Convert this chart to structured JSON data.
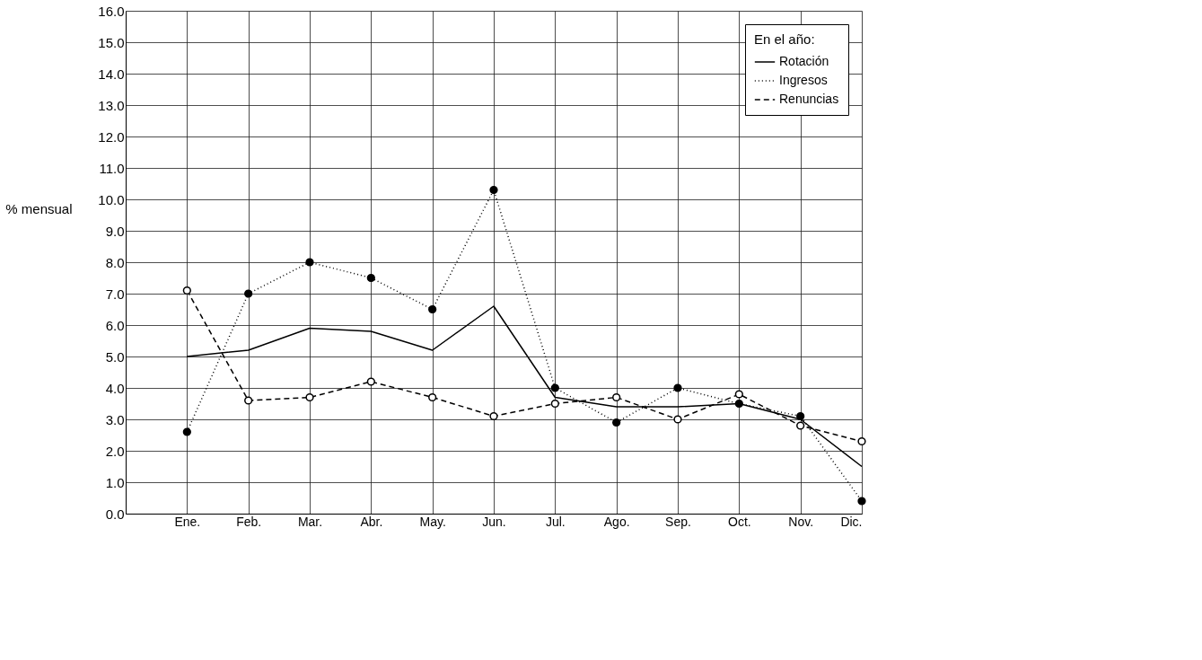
{
  "chart_data": {
    "type": "line",
    "ylabel": "% mensual",
    "legend_title": "En el año:",
    "categories": [
      "Ene.",
      "Feb.",
      "Mar.",
      "Abr.",
      "May.",
      "Jun.",
      "Jul.",
      "Ago.",
      "Sep.",
      "Oct.",
      "Nov.",
      "Dic."
    ],
    "series": [
      {
        "name": "Rotación",
        "color": "#000000",
        "line_style": "solid",
        "marker": "none",
        "values": [
          5.0,
          5.2,
          5.9,
          5.8,
          5.2,
          6.6,
          3.7,
          3.4,
          3.4,
          3.5,
          3.0,
          1.5
        ]
      },
      {
        "name": "Ingresos",
        "color": "#000000",
        "line_style": "dotted",
        "marker": "circle",
        "values": [
          2.6,
          7.0,
          8.0,
          7.5,
          6.5,
          10.3,
          4.0,
          2.9,
          4.0,
          3.5,
          3.1,
          0.4
        ]
      },
      {
        "name": "Renuncias",
        "color": "#000000",
        "line_style": "dashed",
        "marker": "circle",
        "values": [
          7.1,
          3.6,
          3.7,
          4.2,
          3.7,
          3.1,
          3.5,
          3.7,
          3.0,
          3.8,
          2.8,
          2.3
        ]
      }
    ],
    "ylim": [
      0,
      16
    ],
    "yticks": [
      {
        "value": 0,
        "label": "0.0"
      },
      {
        "value": 1,
        "label": "1.0"
      },
      {
        "value": 2,
        "label": "2.0"
      },
      {
        "value": 3,
        "label": "3.0"
      },
      {
        "value": 4,
        "label": "4.0"
      },
      {
        "value": 5,
        "label": "5.0"
      },
      {
        "value": 6,
        "label": "6.0"
      },
      {
        "value": 7,
        "label": "7.0"
      },
      {
        "value": 8,
        "label": "8.0"
      },
      {
        "value": 9,
        "label": "9.0"
      },
      {
        "value": 10,
        "label": "10.0"
      },
      {
        "value": 11,
        "label": "11.0"
      },
      {
        "value": 12,
        "label": "12.0"
      },
      {
        "value": 13,
        "label": "13.0"
      },
      {
        "value": 14,
        "label": "14.0"
      },
      {
        "value": 15,
        "label": "15.0"
      },
      {
        "value": 16,
        "label": "16.0"
      }
    ],
    "grid": true,
    "legend": "top right"
  }
}
